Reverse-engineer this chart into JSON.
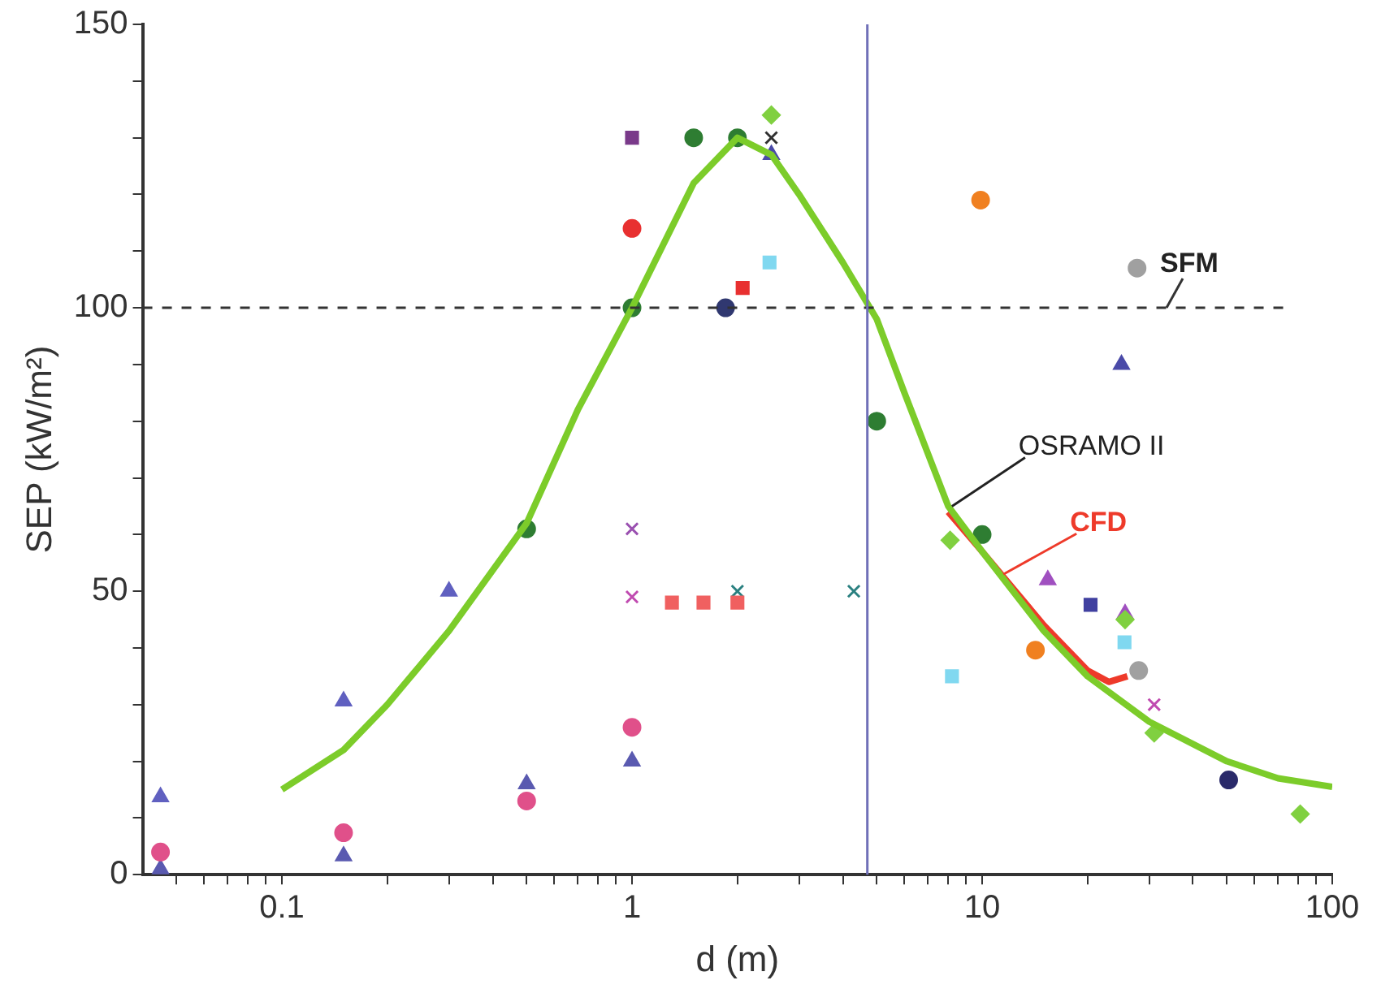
{
  "chart_data": {
    "type": "scatter",
    "xlabel": "d (m)",
    "ylabel": "SEP (kW/m²)",
    "log": "x",
    "xlim": [
      0.04,
      100
    ],
    "ylim": [
      0,
      150
    ],
    "xticks": [
      {
        "value": 0.05,
        "label": null
      },
      {
        "value": 0.06,
        "label": null
      },
      {
        "value": 0.07,
        "label": null
      },
      {
        "value": 0.08,
        "label": null
      },
      {
        "value": 0.09,
        "label": null
      },
      0.1,
      {
        "value": 0.2,
        "label": null
      },
      {
        "value": 0.3,
        "label": null
      },
      {
        "value": 0.4,
        "label": null
      },
      {
        "value": 0.5,
        "label": null
      },
      {
        "value": 0.6,
        "label": null
      },
      {
        "value": 0.7,
        "label": null
      },
      {
        "value": 0.8,
        "label": null
      },
      {
        "value": 0.9,
        "label": null
      },
      1,
      {
        "value": 2,
        "label": null
      },
      {
        "value": 3,
        "label": null
      },
      {
        "value": 4,
        "label": null
      },
      {
        "value": 5,
        "label": null
      },
      {
        "value": 6,
        "label": null
      },
      {
        "value": 7,
        "label": null
      },
      {
        "value": 8,
        "label": null
      },
      {
        "value": 9,
        "label": null
      },
      10,
      {
        "value": 20,
        "label": null
      },
      {
        "value": 30,
        "label": null
      },
      {
        "value": 40,
        "label": null
      },
      {
        "value": 50,
        "label": null
      },
      {
        "value": 60,
        "label": null
      },
      {
        "value": 70,
        "label": null
      },
      {
        "value": 80,
        "label": null
      },
      {
        "value": 90,
        "label": null
      },
      100
    ],
    "yticks": [
      0,
      {
        "value": 10,
        "label": null
      },
      {
        "value": 20,
        "label": null
      },
      {
        "value": 30,
        "label": null
      },
      {
        "value": 40,
        "label": null
      },
      50,
      {
        "value": 60,
        "label": null
      },
      {
        "value": 70,
        "label": null
      },
      {
        "value": 80,
        "label": null
      },
      {
        "value": 90,
        "label": null
      },
      100,
      {
        "value": 110,
        "label": null
      },
      {
        "value": 120,
        "label": null
      },
      {
        "value": 130,
        "label": null
      },
      {
        "value": 140,
        "label": null
      },
      150
    ],
    "grid": false,
    "legend": false,
    "ref_lines": [
      {
        "axis": "y",
        "value": 100,
        "label": "SFM",
        "color": "#333333",
        "line_style": "dashed"
      },
      {
        "axis": "x",
        "value": 4.7,
        "color": "#7070b8",
        "line_style": "solid"
      }
    ],
    "annotations": [
      {
        "text": "OSRAMO II",
        "x": 8.2,
        "y": 65
      },
      {
        "text": "CFD",
        "x": 11.5,
        "y": 53
      }
    ],
    "series": [
      {
        "type": "line",
        "color": "#7ccc2a",
        "marker": "none",
        "line_style": "solid",
        "x": [
          0.1,
          0.15,
          0.2,
          0.3,
          0.5,
          0.7,
          1,
          1.5,
          2,
          2.5,
          3,
          4,
          5,
          6,
          8,
          10,
          15,
          20,
          30,
          50,
          70,
          100
        ],
        "values": [
          15,
          22,
          30,
          43,
          62,
          82,
          100,
          122,
          130,
          127,
          120,
          108,
          98,
          85,
          65,
          57,
          43,
          35,
          27,
          20,
          17,
          15.5
        ]
      },
      {
        "type": "line",
        "color": "#ee3a2a",
        "marker": "none",
        "line_style": "solid",
        "x": [
          8,
          10,
          15,
          20,
          23,
          26
        ],
        "values": [
          64,
          57,
          44,
          36,
          34,
          35
        ]
      },
      {
        "color": "#2e7d32",
        "marker": "circle",
        "x": [
          0.5,
          1,
          1.5,
          2,
          5,
          10
        ],
        "values": [
          61,
          100,
          130,
          130,
          80,
          60
        ]
      },
      {
        "color": "#7a3a8a",
        "marker": "square",
        "x": [
          1
        ],
        "values": [
          130
        ]
      },
      {
        "color": "#e83030",
        "marker": "circle",
        "x": [
          1
        ],
        "values": [
          114
        ]
      },
      {
        "color": "#e0508a",
        "marker": "circle",
        "x": [
          0.045,
          0.15,
          0.5,
          1
        ],
        "values": [
          4,
          7.4,
          13,
          26
        ]
      },
      {
        "color": "#5a5ab0",
        "marker": "triangle",
        "x": [
          0.045,
          0.15,
          0.5,
          1
        ],
        "values": [
          1,
          3.3,
          16,
          20
        ]
      },
      {
        "color": "#6060c0",
        "marker": "triangle",
        "x": [
          0.045,
          0.15,
          0.3
        ],
        "values": [
          13.7,
          30.6,
          50
        ]
      },
      {
        "color": "#9a50b0",
        "marker": "cross",
        "x": [
          1
        ],
        "values": [
          61
        ]
      },
      {
        "color": "#c04ab0",
        "marker": "cross",
        "x": [
          1,
          31
        ],
        "values": [
          49,
          30
        ]
      },
      {
        "color": "#f06060",
        "marker": "square",
        "x": [
          1.3,
          1.6,
          2
        ],
        "values": [
          48,
          48,
          48
        ]
      },
      {
        "color": "#2a8080",
        "marker": "cross",
        "x": [
          2,
          4.3
        ],
        "values": [
          50,
          50
        ]
      },
      {
        "color": "#e83030",
        "marker": "square",
        "x": [
          2.07
        ],
        "values": [
          103.5
        ]
      },
      {
        "color": "#303870",
        "marker": "circle",
        "x": [
          1.85
        ],
        "values": [
          100
        ]
      },
      {
        "color": "#80d8f0",
        "marker": "square",
        "x": [
          2.47,
          8.2,
          25.5
        ],
        "values": [
          108,
          35,
          41
        ]
      },
      {
        "color": "#80d040",
        "marker": "diamond",
        "x": [
          2.5,
          8.1,
          25.6,
          31,
          81
        ],
        "values": [
          134,
          59,
          45,
          25,
          10.7
        ]
      },
      {
        "color": "#4a4aa8",
        "marker": "triangle",
        "x": [
          2.5,
          25
        ],
        "values": [
          127,
          90
        ]
      },
      {
        "color": "#303030",
        "marker": "cross",
        "x": [
          2.5
        ],
        "values": [
          130
        ]
      },
      {
        "color": "#f08020",
        "marker": "circle",
        "x": [
          9.9,
          14.2
        ],
        "values": [
          119,
          39.6
        ]
      },
      {
        "color": "#a0a0a0",
        "marker": "circle",
        "x": [
          27.7,
          28
        ],
        "values": [
          107,
          36
        ]
      },
      {
        "color": "#a050c0",
        "marker": "triangle",
        "x": [
          15.4,
          25.6
        ],
        "values": [
          52,
          46
        ]
      },
      {
        "color": "#4040a0",
        "marker": "square",
        "x": [
          20.4
        ],
        "values": [
          47.6
        ]
      },
      {
        "color": "#2a2a6a",
        "marker": "circle",
        "x": [
          50.6
        ],
        "values": [
          16.7
        ]
      }
    ]
  }
}
